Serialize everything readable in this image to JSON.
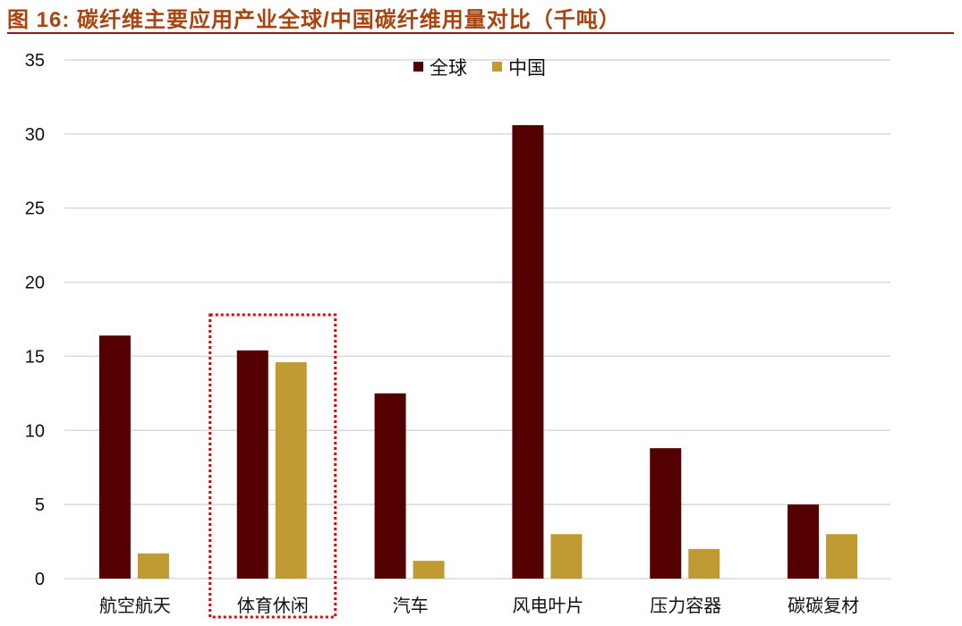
{
  "title": "图 16:  碳纤维主要应用产业全球/中国碳纤维用量对比（千吨）",
  "chart_data": {
    "type": "bar",
    "title": "",
    "xlabel": "",
    "ylabel": "",
    "ylim": [
      0,
      35
    ],
    "yticks": [
      0,
      5,
      10,
      15,
      20,
      25,
      30,
      35
    ],
    "grid": true,
    "legend_position": "top-center",
    "categories": [
      "航空航天",
      "体育休闲",
      "汽车",
      "风电叶片",
      "压力容器",
      "碳碳复材"
    ],
    "series": [
      {
        "name": "全球",
        "color": "#540000",
        "values": [
          16.4,
          15.4,
          12.5,
          30.6,
          8.8,
          5.0
        ]
      },
      {
        "name": "中国",
        "color": "#C09A32",
        "values": [
          1.7,
          14.6,
          1.2,
          3.0,
          2.0,
          3.0
        ]
      }
    ],
    "highlight": {
      "category": "体育休闲",
      "style": "red dotted box",
      "color": "#E00000"
    }
  }
}
